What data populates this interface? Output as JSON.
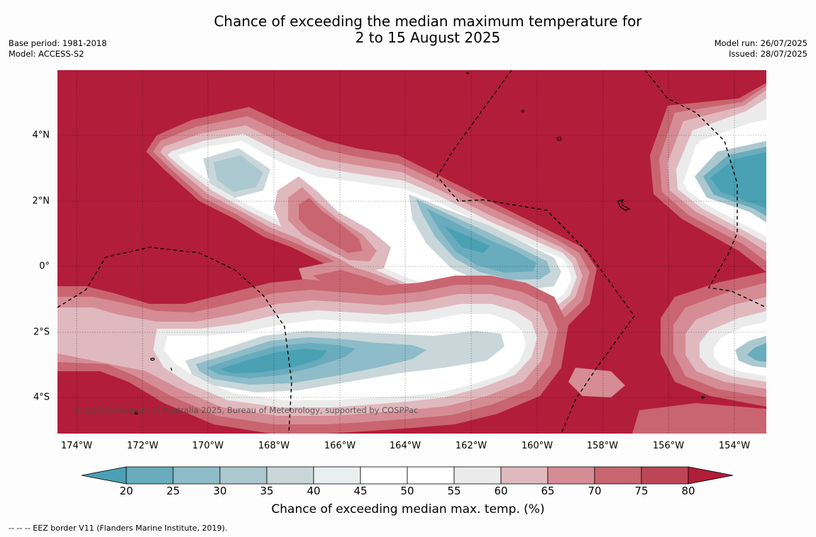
{
  "title_line1": "Chance of exceeding the median maximum temperature for",
  "title_line2": "2 to 15 August 2025",
  "meta_left": [
    "Base period: 1981-2018",
    "Model: ACCESS-S2"
  ],
  "meta_right": [
    "Model run: 26/07/2025",
    "Issued: 28/07/2025"
  ],
  "copyright": "© Commonwealth of Australia 2025, Bureau of Meteorology, supported by COSPPac",
  "map": {
    "lon_range": [
      -174.6,
      -153.0
    ],
    "lat_range": [
      -5.2,
      5.85
    ],
    "lat_ticks": [
      "4°N",
      "2°N",
      "0°",
      "2°S",
      "4°S"
    ],
    "lon_ticks": [
      "174°W",
      "172°W",
      "170°W",
      "168°W",
      "166°W",
      "164°W",
      "162°W",
      "160°W",
      "158°W",
      "156°W",
      "154°W"
    ]
  },
  "colorbar": {
    "ticks": [
      "20",
      "25",
      "30",
      "35",
      "40",
      "45",
      "50",
      "55",
      "60",
      "65",
      "70",
      "75",
      "80"
    ],
    "colors": [
      "#4aa1b3",
      "#69acbd",
      "#8ebcc8",
      "#acc8cf",
      "#c9d7da",
      "#e9eeef",
      "#ffffff",
      "#ffffff",
      "#ebebeb",
      "#e0b9bf",
      "#d58c95",
      "#c96570",
      "#bd4656",
      "#b21d3a"
    ],
    "label": "Chance of exceeding median max. temp. (%)"
  },
  "legend_note": "--  --  -- EEZ border V11 (Flanders Marine Institute, 2019)."
}
